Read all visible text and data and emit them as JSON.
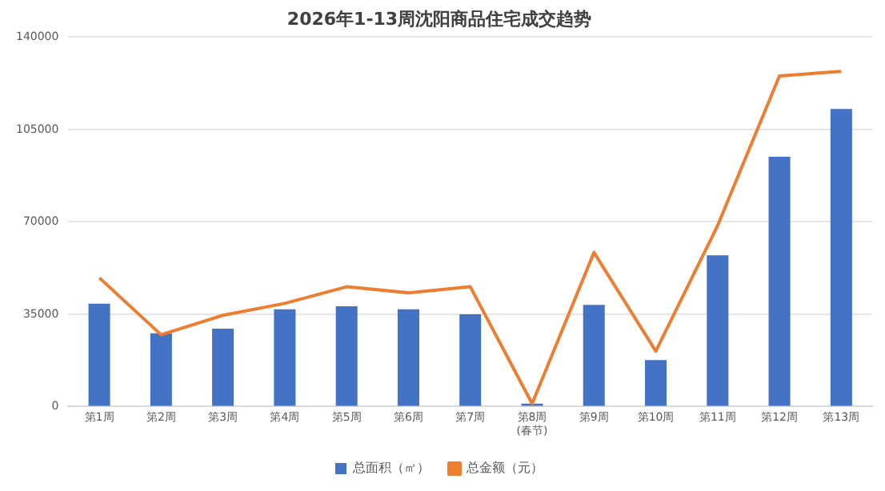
{
  "chart_data": {
    "type": "bar",
    "title": "2026年1-13周沈阳商品住宅成交趋势",
    "categories": [
      "第1周",
      "第2周",
      "第3周",
      "第4周",
      "第5周",
      "第6周",
      "第7周",
      "第8周\n(春节)",
      "第9周",
      "第10周",
      "第11周",
      "第12周",
      "第13周"
    ],
    "series": [
      {
        "name": "总面积（㎡）",
        "color": "#4472c4",
        "values": [
          39000,
          27800,
          29500,
          36900,
          38000,
          36900,
          35000,
          1100,
          38500,
          17600,
          57300,
          94700,
          112800
        ]
      },
      {
        "name": "总金额（元）",
        "type": "line",
        "color": "#ed7d31",
        "values": [
          48800,
          27200,
          34600,
          39100,
          45400,
          43100,
          45400,
          1100,
          58400,
          21000,
          68600,
          125300,
          127000
        ]
      }
    ],
    "ylim": [
      0,
      140000
    ],
    "yticks": [
      0,
      35000,
      70000,
      105000,
      140000
    ],
    "grid": "y",
    "legend": "bottom",
    "marker": "none"
  }
}
